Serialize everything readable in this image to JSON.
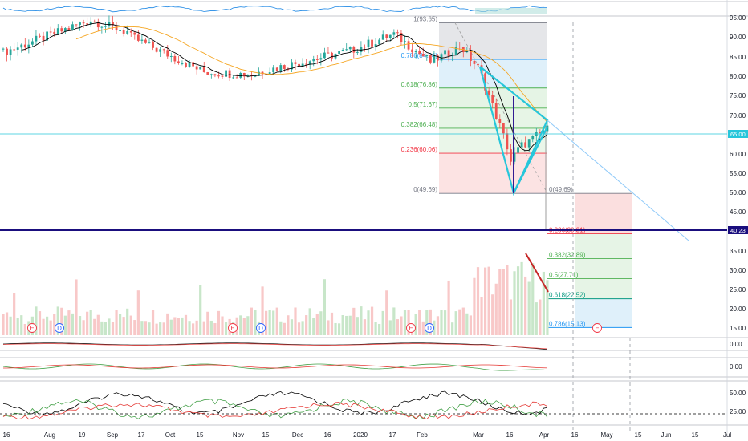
{
  "chart_data": {
    "type": "candlestick",
    "x_axis_labels": [
      "16",
      "Aug",
      "19",
      "Sep",
      "17",
      "Oct",
      "15",
      "Nov",
      "15",
      "Dec",
      "16",
      "2020",
      "17",
      "Feb",
      "Mar",
      "16",
      "Apr",
      "16",
      "May",
      "15",
      "Jun",
      "15",
      "Jul"
    ],
    "price_axis": {
      "ticks": [
        "95.00",
        "90.00",
        "85.00",
        "80.00",
        "75.00",
        "70.00",
        "60.00",
        "55.00",
        "50.00",
        "45.00",
        "35.00",
        "30.00",
        "25.00",
        "20.00",
        "15.00"
      ],
      "ylim": [
        12,
        96
      ]
    },
    "current_price_label": "65.00",
    "horizontal_level_label": "40.23",
    "fib_retracement": [
      {
        "label": "1(93.65)",
        "value": 93.65,
        "color": "#787b86"
      },
      {
        "label": "0.786(84.24)",
        "value": 84.24,
        "color": "#2196f3"
      },
      {
        "label": "0.618(76.86)",
        "value": 76.86,
        "color": "#4caf50"
      },
      {
        "label": "0.5(71.67)",
        "value": 71.67,
        "color": "#4caf50"
      },
      {
        "label": "0.382(66.48)",
        "value": 66.48,
        "color": "#4caf50"
      },
      {
        "label": "0.236(60.06)",
        "value": 60.06,
        "color": "#f23645"
      },
      {
        "label": "0(49.69)",
        "value": 49.69,
        "color": "#787b86"
      }
    ],
    "fib_extension": [
      {
        "label": "0(49.69)",
        "value": 49.69,
        "color": "#787b86"
      },
      {
        "label": "0.236(39.31)",
        "value": 39.31,
        "color": "#f23645"
      },
      {
        "label": "0.382(32.89)",
        "value": 32.89,
        "color": "#4caf50"
      },
      {
        "label": "0.5(27.71)",
        "value": 27.71,
        "color": "#4caf50"
      },
      {
        "label": "0.618(22.52)",
        "value": 22.52,
        "color": "#089981"
      },
      {
        "label": "0.786(15.13)",
        "value": 15.13,
        "color": "#2196f3"
      }
    ],
    "events": [
      {
        "label": "E",
        "kind": "earnings"
      },
      {
        "label": "D",
        "kind": "dividend"
      },
      {
        "label": "E",
        "kind": "earnings"
      },
      {
        "label": "D",
        "kind": "dividend"
      },
      {
        "label": "E",
        "kind": "earnings"
      },
      {
        "label": "D",
        "kind": "dividend"
      },
      {
        "label": "E",
        "kind": "earnings"
      }
    ],
    "indicator_panes": [
      {
        "name": "macd",
        "ticks": [
          "0.00"
        ]
      },
      {
        "name": "oscillator",
        "ticks": [
          "0.00"
        ]
      },
      {
        "name": "dmi",
        "ticks": [
          "50.00",
          "25.00"
        ]
      }
    ],
    "series_colors": {
      "up": "#26a69a",
      "down": "#ef5350",
      "ma_fast": "#000000",
      "ma_slow": "#f5a623",
      "triangle": "#26c6da",
      "level": "#1a0e7e"
    }
  }
}
